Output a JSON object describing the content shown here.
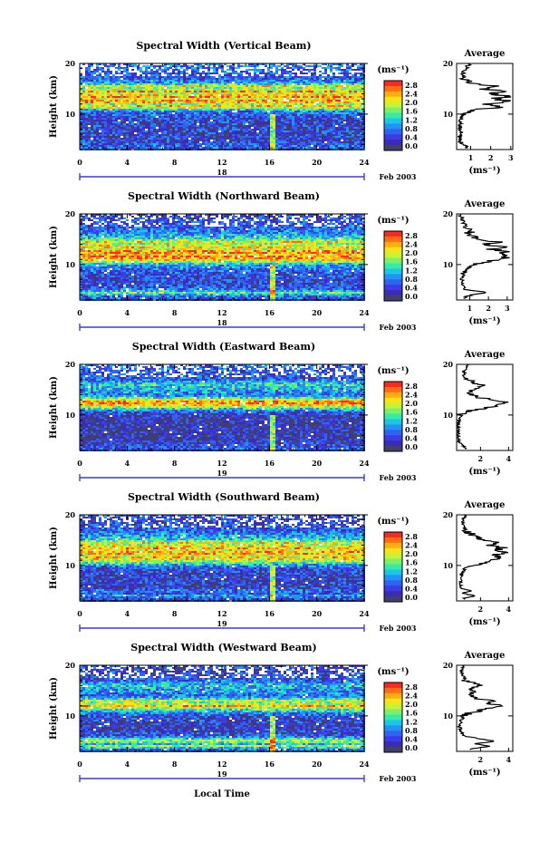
{
  "figure": {
    "xlabel": "Local Time",
    "date_label": "Feb 2003",
    "colorbar_unit": "(ms⁻¹)",
    "colorbar_labels": [
      "2.8",
      "2.4",
      "2.0",
      "1.6",
      "1.2",
      "0.8",
      "0.4",
      "0.0"
    ],
    "colorbar_colors": [
      "#f82a22",
      "#fb6e16",
      "#fdae12",
      "#f7e418",
      "#c6f238",
      "#7bf06a",
      "#38eaa8",
      "#1cc6e6",
      "#2492f4",
      "#2f64f0",
      "#3c3ce4",
      "#3b2cb4",
      "#404068"
    ],
    "average_title": "Average",
    "average_xlabel": "(ms⁻¹)"
  },
  "chart_data": [
    {
      "type": "heatmap",
      "title": "Spectral Width (Vertical Beam)",
      "ylabel": "Height (km)",
      "xlim": [
        0,
        24
      ],
      "ylim": [
        3,
        20
      ],
      "x_ticks": [
        0,
        4,
        8,
        12,
        16,
        20,
        24
      ],
      "y_ticks": [
        10,
        20
      ],
      "day_label": "18",
      "colorbar_range": [
        0.0,
        3.0
      ],
      "profile": {
        "x_ticks": [
          1,
          2,
          3
        ],
        "xlim": [
          0.3,
          3.1
        ],
        "heights": [
          3.5,
          4.5,
          5.5,
          6.5,
          7.5,
          8.5,
          9.5,
          10.5,
          11.0,
          11.5,
          12.0,
          12.5,
          13.0,
          13.5,
          14.0,
          14.5,
          15.0,
          15.5,
          16.0,
          17.0,
          18.0,
          19.0,
          19.8
        ],
        "values": [
          0.8,
          0.5,
          0.45,
          0.5,
          0.45,
          0.5,
          0.6,
          0.9,
          1.6,
          2.6,
          1.8,
          2.9,
          2.2,
          2.8,
          2.0,
          2.7,
          1.6,
          2.4,
          1.2,
          0.7,
          0.6,
          0.8,
          0.9
        ]
      }
    },
    {
      "type": "heatmap",
      "title": "Spectral Width (Northward Beam)",
      "ylabel": "Height (km)",
      "xlim": [
        0,
        24
      ],
      "ylim": [
        3,
        20
      ],
      "x_ticks": [
        0,
        4,
        8,
        12,
        16,
        20,
        24
      ],
      "y_ticks": [
        10,
        20
      ],
      "day_label": "18",
      "colorbar_range": [
        0.0,
        3.0
      ],
      "profile": {
        "x_ticks": [
          1,
          2,
          3
        ],
        "xlim": [
          0.3,
          3.3
        ],
        "heights": [
          3.5,
          4.0,
          4.5,
          5.0,
          6.0,
          7.0,
          8.0,
          9.0,
          10.0,
          10.5,
          11.0,
          11.5,
          12.0,
          12.5,
          13.0,
          13.5,
          14.0,
          14.5,
          15.0,
          16.0,
          17.0,
          18.0,
          19.0,
          19.8
        ],
        "values": [
          0.7,
          1.1,
          1.9,
          0.8,
          0.6,
          0.6,
          0.65,
          0.8,
          1.2,
          2.0,
          2.6,
          3.0,
          2.5,
          3.1,
          2.2,
          2.7,
          1.9,
          2.5,
          1.6,
          1.1,
          0.8,
          0.7,
          0.6,
          0.5
        ]
      }
    },
    {
      "type": "heatmap",
      "title": "Spectral Width (Eastward Beam)",
      "ylabel": "Height (km)",
      "xlim": [
        0,
        24
      ],
      "ylim": [
        3,
        20
      ],
      "x_ticks": [
        0,
        4,
        8,
        12,
        16,
        20,
        24
      ],
      "y_ticks": [
        10,
        20
      ],
      "day_label": "19",
      "colorbar_range": [
        0.0,
        3.0
      ],
      "profile": {
        "x_ticks": [
          2,
          4
        ],
        "xlim": [
          0.3,
          4.3
        ],
        "heights": [
          3.5,
          4.5,
          5.5,
          6.5,
          7.5,
          8.5,
          9.5,
          10.5,
          11.0,
          11.5,
          12.0,
          12.5,
          13.0,
          13.5,
          14.0,
          15.0,
          16.0,
          17.0,
          18.0,
          19.0,
          19.8
        ],
        "values": [
          0.9,
          0.5,
          0.4,
          0.4,
          0.4,
          0.4,
          0.5,
          0.8,
          1.5,
          2.6,
          3.4,
          3.9,
          3.0,
          1.8,
          1.2,
          1.6,
          2.0,
          1.0,
          0.8,
          0.9,
          1.1
        ]
      }
    },
    {
      "type": "heatmap",
      "title": "Spectral Width (Southward Beam)",
      "ylabel": "Height (km)",
      "xlim": [
        0,
        24
      ],
      "ylim": [
        3,
        20
      ],
      "x_ticks": [
        0,
        4,
        8,
        12,
        16,
        20,
        24
      ],
      "y_ticks": [
        10,
        20
      ],
      "day_label": "19",
      "colorbar_range": [
        0.0,
        3.0
      ],
      "profile": {
        "x_ticks": [
          2,
          4
        ],
        "xlim": [
          0.3,
          4.3
        ],
        "heights": [
          3.5,
          4.0,
          4.5,
          5.0,
          5.5,
          6.5,
          7.5,
          8.5,
          9.5,
          10.0,
          10.5,
          11.0,
          11.5,
          12.0,
          12.5,
          13.0,
          13.5,
          14.0,
          14.5,
          15.0,
          16.0,
          17.0,
          18.0,
          19.0,
          19.8
        ],
        "values": [
          0.8,
          1.6,
          0.7,
          1.3,
          0.6,
          0.6,
          0.6,
          0.7,
          0.9,
          1.4,
          2.2,
          2.8,
          3.5,
          2.9,
          3.8,
          3.1,
          3.6,
          2.6,
          3.2,
          2.0,
          1.4,
          1.0,
          0.8,
          0.7,
          0.9
        ]
      }
    },
    {
      "type": "heatmap",
      "title": "Spectral Width (Westward Beam)",
      "ylabel": "Height (km)",
      "xlim": [
        0,
        24
      ],
      "ylim": [
        3,
        20
      ],
      "x_ticks": [
        0,
        4,
        8,
        12,
        16,
        20,
        24
      ],
      "y_ticks": [
        10,
        20
      ],
      "day_label": "19",
      "colorbar_range": [
        0.0,
        3.0
      ],
      "profile": {
        "x_ticks": [
          2,
          4
        ],
        "xlim": [
          0.3,
          4.3
        ],
        "heights": [
          3.5,
          4.0,
          4.5,
          5.0,
          6.0,
          7.0,
          8.0,
          9.0,
          10.0,
          10.5,
          11.0,
          11.5,
          12.0,
          12.5,
          13.0,
          13.5,
          14.0,
          15.0,
          16.0,
          17.0,
          18.0,
          19.0,
          19.8
        ],
        "values": [
          1.2,
          2.8,
          1.5,
          3.0,
          0.9,
          0.6,
          0.5,
          0.6,
          0.8,
          1.2,
          1.9,
          2.6,
          3.6,
          2.4,
          3.0,
          1.6,
          1.2,
          1.4,
          1.8,
          1.0,
          0.7,
          0.6,
          0.8
        ]
      }
    }
  ]
}
